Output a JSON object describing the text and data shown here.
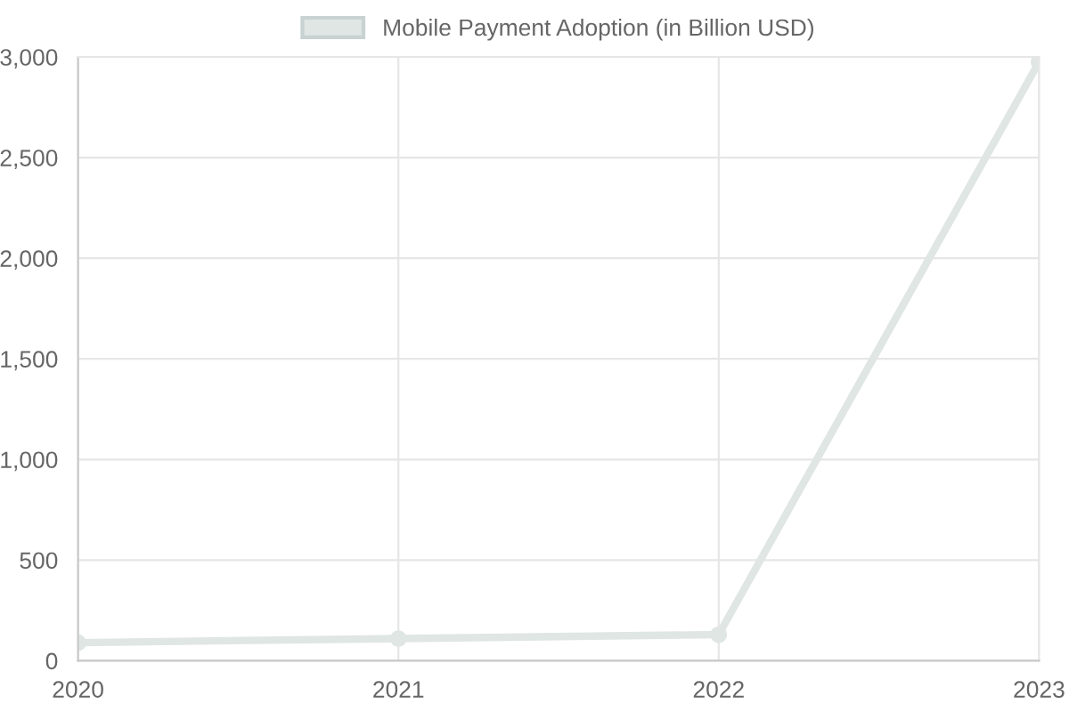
{
  "chart_data": {
    "type": "line",
    "categories": [
      "2020",
      "2021",
      "2022",
      "2023"
    ],
    "series": [
      {
        "name": "Mobile Payment Adoption (in Billion USD)",
        "color": "#dfe6e4",
        "values": [
          90,
          110,
          130,
          2975
        ]
      }
    ],
    "ylim": [
      0,
      3000
    ],
    "yticks": [
      {
        "value": 0,
        "label": "0"
      },
      {
        "value": 500,
        "label": "500"
      },
      {
        "value": 1000,
        "label": "1,000"
      },
      {
        "value": 1500,
        "label": "1,500"
      },
      {
        "value": 2000,
        "label": "2,000"
      },
      {
        "value": 2500,
        "label": "2,500"
      },
      {
        "value": 3000,
        "label": "3,000"
      }
    ],
    "grid": true,
    "legend": "top",
    "marker": "circle",
    "line_style": "solid"
  }
}
